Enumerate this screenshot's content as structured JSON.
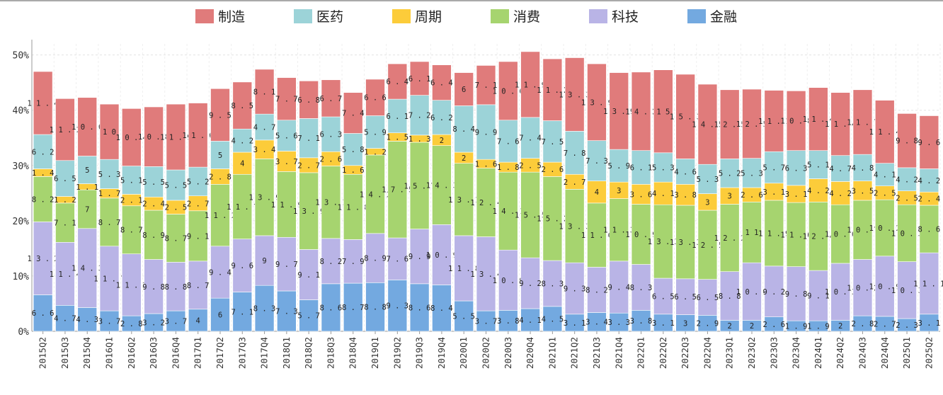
{
  "chart_data": {
    "type": "bar",
    "stacked": true,
    "title": "",
    "xlabel": "",
    "ylabel": "",
    "ylim": [
      0,
      52
    ],
    "yticks": [
      "0%",
      "10%",
      "20%",
      "30%",
      "40%",
      "50%"
    ],
    "ytick_values": [
      0,
      10,
      20,
      30,
      40,
      50
    ],
    "legend_position": "top-center",
    "categories": [
      "2015Q2",
      "2015Q3",
      "2015Q4",
      "2016Q1",
      "2016Q2",
      "2016Q3",
      "2016Q4",
      "2017Q1",
      "2017Q2",
      "2017Q3",
      "2017Q4",
      "2018Q1",
      "2018Q2",
      "2018Q3",
      "2018Q4",
      "2019Q1",
      "2019Q2",
      "2019Q3",
      "2019Q4",
      "2020Q1",
      "2020Q2",
      "2020Q3",
      "2020Q4",
      "2021Q1",
      "2021Q2",
      "2021Q3",
      "2021Q4",
      "2022Q1",
      "2022Q2",
      "2022Q3",
      "2022Q4",
      "2023Q1",
      "2023Q2",
      "2023Q3",
      "2023Q4",
      "2024Q1",
      "2024Q2",
      "2024Q3",
      "2024Q4",
      "2025Q1",
      "2025Q2"
    ],
    "series": [
      {
        "name": "金融",
        "color": "#73a9e0",
        "values": [
          6.6,
          4.7,
          4.3,
          3.7,
          2.8,
          3.2,
          3.7,
          4,
          6,
          7.1,
          8.3,
          7.3,
          5.7,
          8.6,
          8.7,
          8.8,
          9.3,
          8.6,
          8.4,
          5.5,
          3.7,
          3.8,
          4.1,
          4.5,
          3.1,
          3.4,
          3.3,
          3.8,
          3.1,
          3,
          2.9,
          2,
          2,
          2.6,
          1.9,
          1.9,
          2,
          2.8,
          2.7,
          2.3,
          3.1
        ]
      },
      {
        "name": "科技",
        "color": "#b9b4e6",
        "values": [
          13.2,
          11.4,
          14.3,
          11.7,
          11.2,
          9.8,
          8.8,
          8.7,
          9.4,
          9.6,
          9,
          9.7,
          9.1,
          8.2,
          7.9,
          8.9,
          7.6,
          9.9,
          10.9,
          11.8,
          13.4,
          10.9,
          9.2,
          8.3,
          9.3,
          8.2,
          9.4,
          8.3,
          6.5,
          6.5,
          6.5,
          8.8,
          10.4,
          9.2,
          9.8,
          9.1,
          10.3,
          10.2,
          10.9,
          10.3,
          11.1
        ]
      },
      {
        "name": "消费",
        "color": "#a6d46f",
        "values": [
          8.2,
          7.1,
          7,
          8.7,
          8.7,
          8.9,
          8.7,
          9.1,
          11.2,
          11.7,
          13.9,
          11.9,
          13.9,
          13.1,
          11.8,
          14.2,
          17.5,
          15.7,
          14.3,
          13.1,
          12.4,
          14.1,
          15.5,
          15.2,
          13.3,
          11.6,
          11.3,
          10.9,
          13.3,
          13.3,
          12.5,
          12.2,
          11,
          11.9,
          11.6,
          12.4,
          10.6,
          10.7,
          10.2,
          10.3,
          8.6
        ]
      },
      {
        "name": "周期",
        "color": "#fccc3a",
        "values": [
          1.4,
          1.2,
          1.1,
          1.7,
          2.1,
          2.4,
          2.5,
          2.7,
          2.8,
          4,
          3.4,
          3.7,
          2.7,
          2.6,
          1.6,
          1.2,
          1.5,
          1.3,
          2,
          2,
          1.6,
          1.8,
          2.5,
          2.6,
          2.7,
          4,
          3,
          3.6,
          4.1,
          3.8,
          3,
          3,
          2.6,
          3.1,
          3.1,
          4.2,
          4.2,
          3.5,
          2.5,
          2.5,
          2.4
        ]
      },
      {
        "name": "医药",
        "color": "#9cd3d8",
        "values": [
          6.2,
          6.5,
          5,
          5.3,
          5.1,
          5.5,
          5.5,
          5.2,
          5,
          4.2,
          4.7,
          5.6,
          7.1,
          6.3,
          5.8,
          5.9,
          6.1,
          7.2,
          6.2,
          8.4,
          9.9,
          7.6,
          7.4,
          7.5,
          7.8,
          7.3,
          5.9,
          6.1,
          5.3,
          4.6,
          5.3,
          5.2,
          5.3,
          5.7,
          6.3,
          5.1,
          4.7,
          4.8,
          4.1,
          4.2,
          4.2
        ]
      },
      {
        "name": "制造",
        "color": "#e07b7b",
        "values": [
          11.4,
          11.2,
          10.6,
          10,
          10.4,
          10.8,
          11.9,
          11.6,
          9.5,
          8.5,
          8.1,
          7.7,
          6.8,
          6.7,
          7.4,
          6.6,
          6.4,
          6.1,
          6.4,
          6,
          7.1,
          10.6,
          11.9,
          11.2,
          13.3,
          13.9,
          13.9,
          14.2,
          15,
          15.3,
          14.5,
          12.5,
          12.5,
          11.1,
          10.8,
          11.4,
          11.4,
          11.7,
          11.4,
          9.8,
          9.6
        ]
      }
    ],
    "legend_order": [
      "制造",
      "医药",
      "周期",
      "消费",
      "科技",
      "金融"
    ]
  }
}
